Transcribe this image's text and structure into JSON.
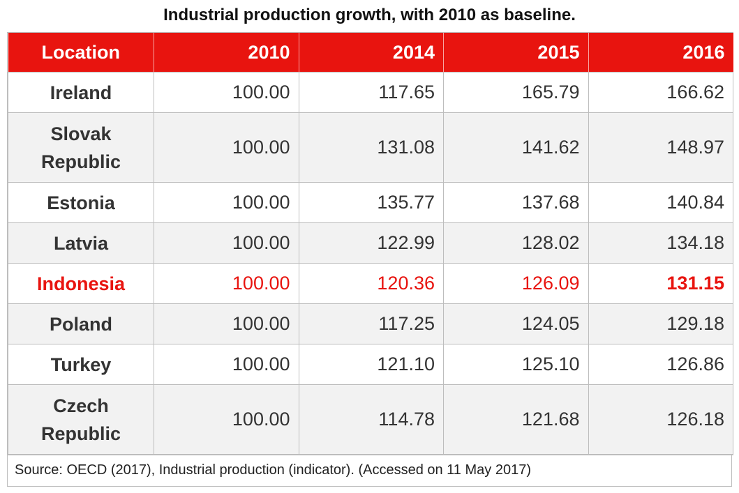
{
  "chart_data": {
    "type": "table",
    "title": "Industrial production growth, with 2010 as baseline.",
    "columns": [
      "Location",
      "2010",
      "2014",
      "2015",
      "2016"
    ],
    "rows": [
      {
        "location": "Ireland",
        "values": [
          "100.00",
          "117.65",
          "165.79",
          "166.62"
        ]
      },
      {
        "location": "Slovak Republic",
        "values": [
          "100.00",
          "131.08",
          "141.62",
          "148.97"
        ]
      },
      {
        "location": "Estonia",
        "values": [
          "100.00",
          "135.77",
          "137.68",
          "140.84"
        ]
      },
      {
        "location": "Latvia",
        "values": [
          "100.00",
          "122.99",
          "128.02",
          "134.18"
        ]
      },
      {
        "location": "Indonesia",
        "values": [
          "100.00",
          "120.36",
          "126.09",
          "131.15"
        ]
      },
      {
        "location": "Poland",
        "values": [
          "100.00",
          "117.25",
          "124.05",
          "129.18"
        ]
      },
      {
        "location": "Turkey",
        "values": [
          "100.00",
          "121.10",
          "125.10",
          "126.86"
        ]
      },
      {
        "location": "Czech Republic",
        "values": [
          "100.00",
          "114.78",
          "121.68",
          "126.18"
        ]
      }
    ],
    "highlighted_row": "Indonesia",
    "source": "Source: OECD (2017), Industrial production (indicator). (Accessed on 11 May 2017)"
  },
  "colors": {
    "header_background": "#e8140f",
    "highlight_text": "#e8140f",
    "alt_row_background": "#f2f2f2"
  }
}
